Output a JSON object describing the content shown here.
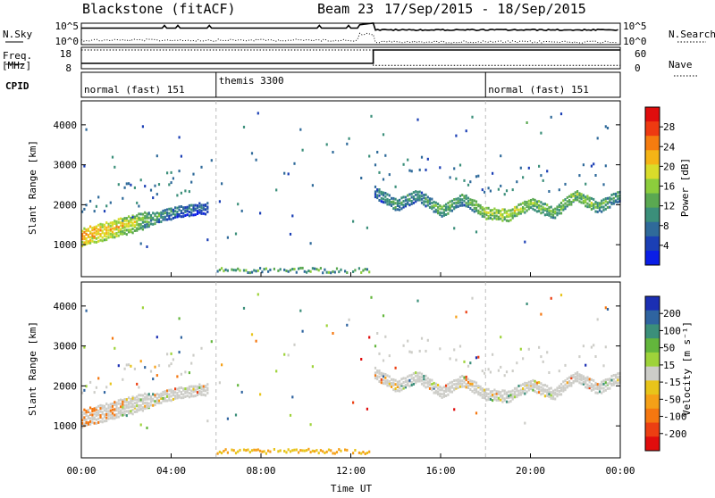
{
  "header": {
    "station": "Blackstone (fitACF)",
    "beam": "Beam 23",
    "date_range": "17/Sep/2015 - 18/Sep/2015"
  },
  "left_labels": {
    "nsky": "N.Sky",
    "freq_top": "Freq.",
    "freq_unit": "[MHz]",
    "cpid": "CPID"
  },
  "right_labels": {
    "nsearch": "N.Search",
    "nave": "Nave"
  },
  "noise_panel": {
    "left_ticks": [
      "10^5",
      "10^0"
    ],
    "right_ticks": [
      "10^5",
      "10^0"
    ]
  },
  "freq_panel": {
    "left_ticks": [
      "18",
      "8"
    ],
    "right_ticks": [
      "60",
      "0"
    ],
    "freq_segments": [
      {
        "hour": 0,
        "mhz": 10.5
      },
      {
        "hour": 13.0,
        "mhz": 10.5
      },
      {
        "hour": 13.0,
        "mhz": 18
      }
    ],
    "nave_segments": [
      {
        "hour": 0,
        "value": 60
      },
      {
        "hour": 13.0,
        "value": 60
      },
      {
        "hour": 13.0,
        "value": 8
      },
      {
        "hour": 24,
        "value": 8
      }
    ]
  },
  "cpid_panel": {
    "modes": [
      {
        "label": "normal (fast) 151",
        "start_hour": 0
      },
      {
        "label": "themis 3300",
        "start_hour": 6
      },
      {
        "label": "normal (fast) 151",
        "start_hour": 18
      }
    ]
  },
  "chart_data": [
    {
      "type": "heatmap",
      "name": "power",
      "ylabel": "Slant Range [km]",
      "xlabel": "Time UT",
      "xlim": [
        0,
        24
      ],
      "ylim": [
        200,
        4600
      ],
      "y_ticks": [
        "1000",
        "2000",
        "3000",
        "4000"
      ],
      "x_ticks": [
        "00:00",
        "04:00",
        "08:00",
        "12:00",
        "16:00",
        "20:00",
        "00:00"
      ],
      "colorbar": {
        "label": "Power [dB]",
        "ticks": [
          "4",
          "8",
          "12",
          "16",
          "20",
          "24",
          "28"
        ],
        "colors": [
          "#0a1ee6",
          "#1b3fb5",
          "#2f6a9a",
          "#3b8f7a",
          "#5aa851",
          "#8ccd3c",
          "#d9dc2a",
          "#f5b416",
          "#f57c0f",
          "#ee3a11",
          "#e00d0d"
        ]
      },
      "bands": [
        {
          "hour": 0.0,
          "range": 1250,
          "db": 24
        },
        {
          "hour": 1.0,
          "range": 1400,
          "db": 22
        },
        {
          "hour": 2.0,
          "range": 1550,
          "db": 20
        },
        {
          "hour": 3.0,
          "range": 1700,
          "db": 14
        },
        {
          "hour": 4.0,
          "range": 1850,
          "db": 10
        },
        {
          "hour": 5.0,
          "range": 1950,
          "db": 8
        },
        {
          "hour": 13.0,
          "range": 2400,
          "db": 8
        },
        {
          "hour": 14.0,
          "range": 2050,
          "db": 12
        },
        {
          "hour": 15.0,
          "range": 2300,
          "db": 10
        },
        {
          "hour": 16.0,
          "range": 1900,
          "db": 14
        },
        {
          "hour": 17.0,
          "range": 2200,
          "db": 12
        },
        {
          "hour": 18.0,
          "range": 1850,
          "db": 16
        },
        {
          "hour": 19.0,
          "range": 1800,
          "db": 18
        },
        {
          "hour": 20.0,
          "range": 2100,
          "db": 16
        },
        {
          "hour": 21.0,
          "range": 1850,
          "db": 14
        },
        {
          "hour": 22.0,
          "range": 2300,
          "db": 16
        },
        {
          "hour": 23.0,
          "range": 2000,
          "db": 14
        },
        {
          "hour": 24.0,
          "range": 2300,
          "db": 12
        }
      ]
    },
    {
      "type": "heatmap",
      "name": "velocity",
      "ylabel": "Slant Range [km]",
      "xlabel": "Time UT",
      "xlim": [
        0,
        24
      ],
      "ylim": [
        200,
        4600
      ],
      "y_ticks": [
        "1000",
        "2000",
        "3000",
        "4000"
      ],
      "x_ticks": [
        "00:00",
        "04:00",
        "08:00",
        "12:00",
        "16:00",
        "20:00",
        "00:00"
      ],
      "colorbar": {
        "label": "Velocity [m s⁻¹]",
        "ticks": [
          "200",
          "100",
          "50",
          "15",
          "-15",
          "-50",
          "-100",
          "-200"
        ],
        "colors": [
          "#1b2fb3",
          "#2f64a0",
          "#3b8f7a",
          "#63b63c",
          "#9ed33a",
          "#cdcdc8",
          "#e8c41a",
          "#f5a017",
          "#f57710",
          "#ec3f12",
          "#e00d0d"
        ]
      }
    }
  ]
}
